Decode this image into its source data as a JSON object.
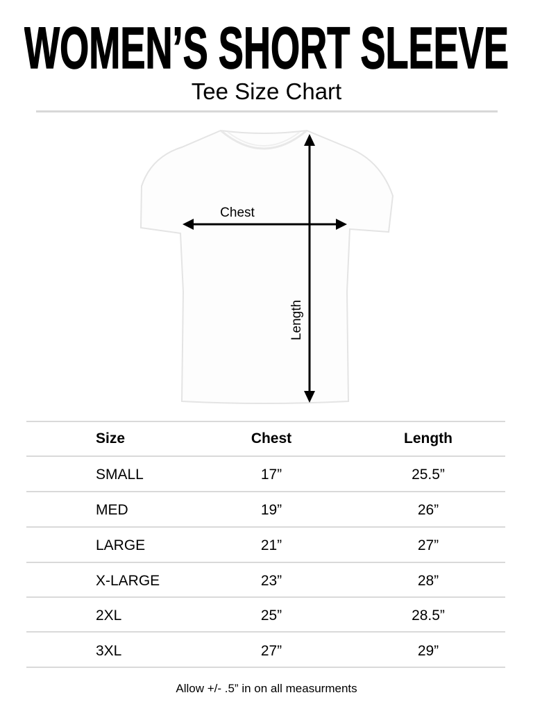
{
  "header": {
    "title": "WOMEN’S SHORT SLEEVE",
    "subtitle": "Tee Size Chart"
  },
  "diagram": {
    "chest_label": "Chest",
    "length_label": "Length"
  },
  "table": {
    "columns": [
      "Size",
      "Chest",
      "Length"
    ],
    "rows": [
      [
        "SMALL",
        "17”",
        "25.5”"
      ],
      [
        "MED",
        "19”",
        "26”"
      ],
      [
        "LARGE",
        "21”",
        "27”"
      ],
      [
        "X-LARGE",
        "23”",
        "28”"
      ],
      [
        "2XL",
        "25”",
        "28.5”"
      ],
      [
        "3XL",
        "27”",
        "29”"
      ]
    ]
  },
  "footer": {
    "note": "Allow +/- .5” in on all measurments"
  }
}
